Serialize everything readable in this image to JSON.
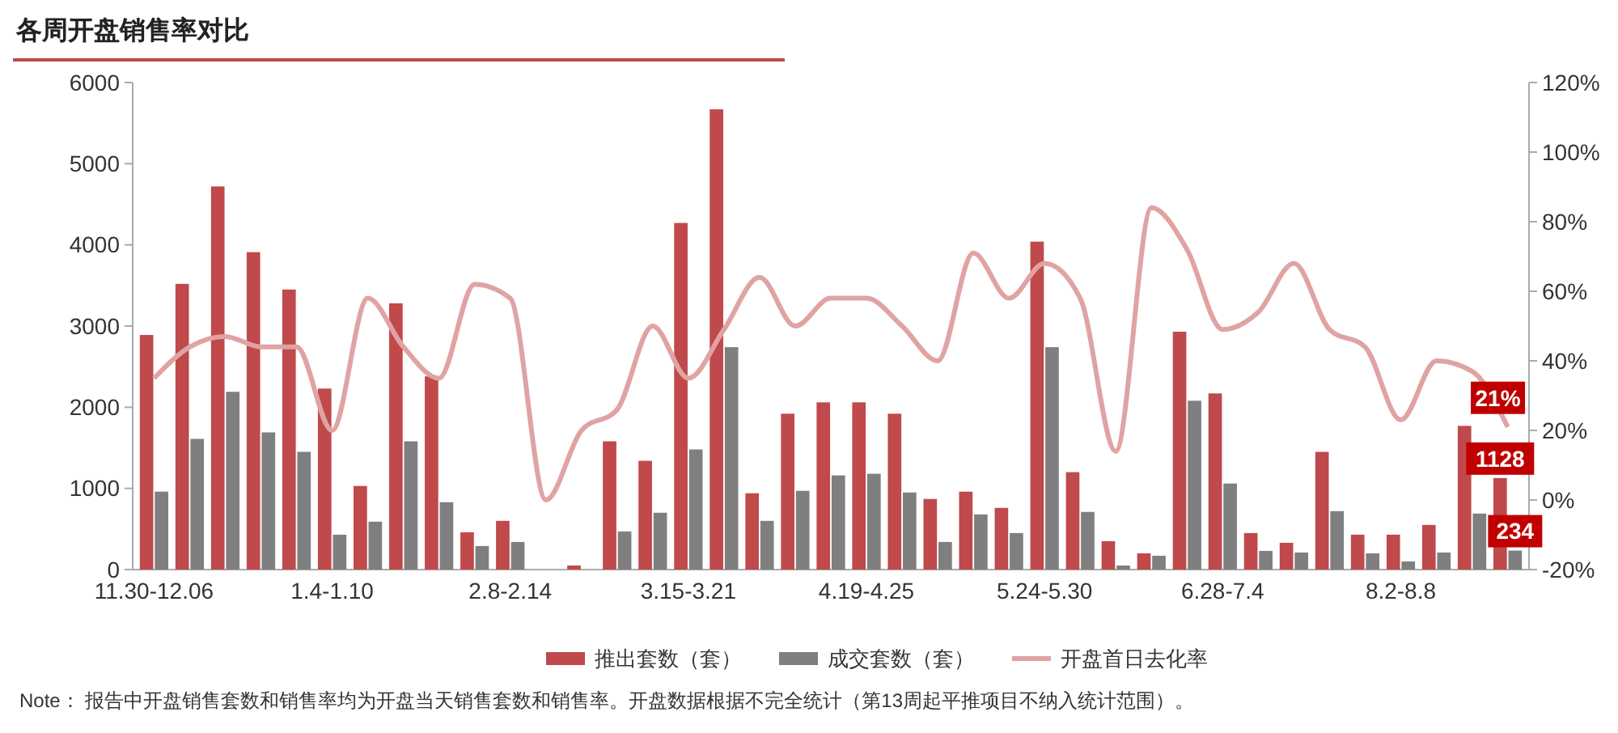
{
  "chart_data": {
    "type": "bar",
    "title": "各周开盘销售率对比",
    "categories": [
      "11.30-12.06",
      null,
      null,
      null,
      null,
      "1.4-1.10",
      null,
      null,
      null,
      null,
      "2.8-2.14",
      null,
      null,
      null,
      null,
      "3.15-3.21",
      null,
      null,
      null,
      null,
      "4.19-4.25",
      null,
      null,
      null,
      null,
      "5.24-5.30",
      null,
      null,
      null,
      null,
      "6.28-7.4",
      null,
      null,
      null,
      null,
      "8.2-8.8",
      null,
      null,
      null
    ],
    "series": [
      {
        "name": "推出套数（套）",
        "color": "#c0494b",
        "values": [
          2890,
          3520,
          4720,
          3910,
          3450,
          2230,
          1030,
          3280,
          2380,
          460,
          600,
          null,
          50,
          1580,
          1340,
          4270,
          5670,
          940,
          1920,
          2060,
          2060,
          1920,
          870,
          960,
          760,
          4040,
          1200,
          350,
          200,
          2930,
          2170,
          450,
          330,
          1450,
          430,
          430,
          550,
          1770,
          1128
        ],
        "value_labels": [
          null,
          null,
          null,
          null,
          null,
          null,
          null,
          null,
          null,
          null,
          null,
          null,
          null,
          null,
          null,
          null,
          null,
          null,
          null,
          null,
          null,
          null,
          null,
          null,
          null,
          null,
          null,
          null,
          null,
          null,
          null,
          null,
          null,
          null,
          null,
          null,
          null,
          null,
          "1128"
        ]
      },
      {
        "name": "成交套数（套）",
        "color": "#7f7f7f",
        "values": [
          960,
          1610,
          2190,
          1690,
          1450,
          430,
          590,
          1580,
          830,
          290,
          340,
          null,
          null,
          470,
          700,
          1480,
          2740,
          600,
          970,
          1160,
          1180,
          950,
          340,
          680,
          450,
          2740,
          710,
          50,
          170,
          2080,
          1060,
          230,
          210,
          720,
          200,
          100,
          210,
          690,
          234
        ],
        "value_labels": [
          null,
          null,
          null,
          null,
          null,
          null,
          null,
          null,
          null,
          null,
          null,
          null,
          null,
          null,
          null,
          null,
          null,
          null,
          null,
          null,
          null,
          null,
          null,
          null,
          null,
          null,
          null,
          null,
          null,
          null,
          null,
          null,
          null,
          null,
          null,
          null,
          null,
          null,
          "234"
        ]
      },
      {
        "name": "开盘首日去化率",
        "type": "line",
        "axis": "y2",
        "color": "#e0a3a3",
        "values": [
          35,
          44,
          47,
          44,
          44,
          20,
          58,
          44,
          35,
          62,
          58,
          0,
          20,
          26,
          50,
          35,
          49,
          64,
          50,
          58,
          58,
          50,
          40,
          71,
          58,
          68,
          58,
          14,
          84,
          72,
          49,
          54,
          68,
          49,
          44,
          23,
          40,
          37,
          21
        ],
        "value_labels": [
          null,
          null,
          null,
          null,
          null,
          null,
          null,
          null,
          null,
          null,
          null,
          null,
          null,
          null,
          null,
          null,
          null,
          null,
          null,
          null,
          null,
          null,
          null,
          null,
          null,
          null,
          null,
          null,
          null,
          null,
          null,
          null,
          null,
          null,
          null,
          null,
          null,
          null,
          "21%"
        ]
      }
    ],
    "ylim": [
      0,
      6000
    ],
    "yticks": [
      0,
      1000,
      2000,
      3000,
      4000,
      5000,
      6000
    ],
    "y2lim": [
      -20,
      120
    ],
    "y2ticks": [
      {
        "value": -20,
        "label": "-20%"
      },
      {
        "value": 0,
        "label": "0%"
      },
      {
        "value": 20,
        "label": "20%"
      },
      {
        "value": 40,
        "label": "40%"
      },
      {
        "value": 60,
        "label": "60%"
      },
      {
        "value": 80,
        "label": "80%"
      },
      {
        "value": 100,
        "label": "100%"
      },
      {
        "value": 120,
        "label": "120%"
      }
    ],
    "grid": false,
    "legend": "bottom",
    "annotations": [
      "Note： 报告中开盘销售套数和销售率均为开盘当天销售套数和销售率。开盘数据根据不完全统计（第13周起平推项目不纳入统计范围）。"
    ]
  }
}
